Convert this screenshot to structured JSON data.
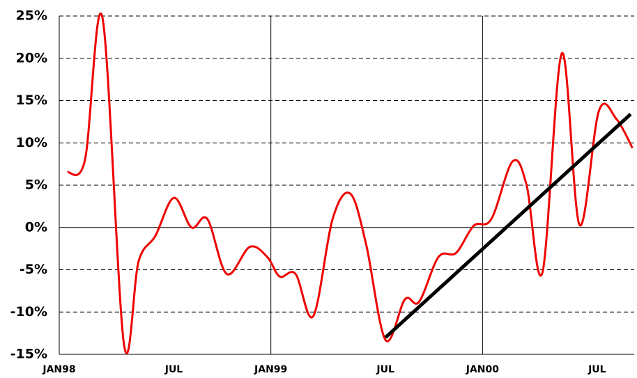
{
  "chart_data": {
    "type": "line",
    "x": [
      0.47,
      1.46,
      2.45,
      3.67,
      4.5,
      5.45,
      6.5,
      7.5,
      8.4,
      9.5,
      10.8,
      11.8,
      12.5,
      13.4,
      14.4,
      15.5,
      16.5,
      17.4,
      18.5,
      19.6,
      20.4,
      21.5,
      22.5,
      23.5,
      24.5,
      25.7,
      26.5,
      27.4,
      28.5,
      29.5,
      30.6,
      31.6,
      32.5
    ],
    "series": [
      {
        "color": "#ee0000",
        "values": [
          6.5,
          8,
          24.8,
          -13.8,
          -4,
          -1,
          3.5,
          0,
          1,
          -5.5,
          -2.3,
          -3.5,
          -5.8,
          -5.5,
          -10.5,
          1,
          4,
          -2,
          -13.3,
          -8.5,
          -8.8,
          -3.5,
          -3,
          0.2,
          1,
          7.8,
          5,
          -5.3,
          20.6,
          0.3,
          13.8,
          12.8,
          9.4
        ]
      }
    ],
    "trend": {
      "color": "#000000",
      "x": [
        18.5,
        32.4
      ],
      "values": [
        -13,
        13.4
      ]
    },
    "xlim": [
      0,
      32.6
    ],
    "xticks": [
      {
        "value": 0,
        "label": "JAN98"
      },
      {
        "value": 6.5,
        "label": "JUL"
      },
      {
        "value": 12,
        "label": "JAN99"
      },
      {
        "value": 18.5,
        "label": "JUL"
      },
      {
        "value": 24,
        "label": "JAN00"
      },
      {
        "value": 30.5,
        "label": "JUL"
      }
    ],
    "xgrid": [
      12,
      24
    ],
    "ylim": [
      -15,
      25
    ],
    "yticks": [
      {
        "value": -15,
        "label": "-15%"
      },
      {
        "value": -10,
        "label": "-10%"
      },
      {
        "value": -5,
        "label": "-5%"
      },
      {
        "value": 0,
        "label": "0%"
      },
      {
        "value": 5,
        "label": "5%"
      },
      {
        "value": 10,
        "label": "10%"
      },
      {
        "value": 15,
        "label": "15%"
      },
      {
        "value": 20,
        "label": "20%"
      },
      {
        "value": 25,
        "label": "25%"
      }
    ],
    "grid": true
  }
}
